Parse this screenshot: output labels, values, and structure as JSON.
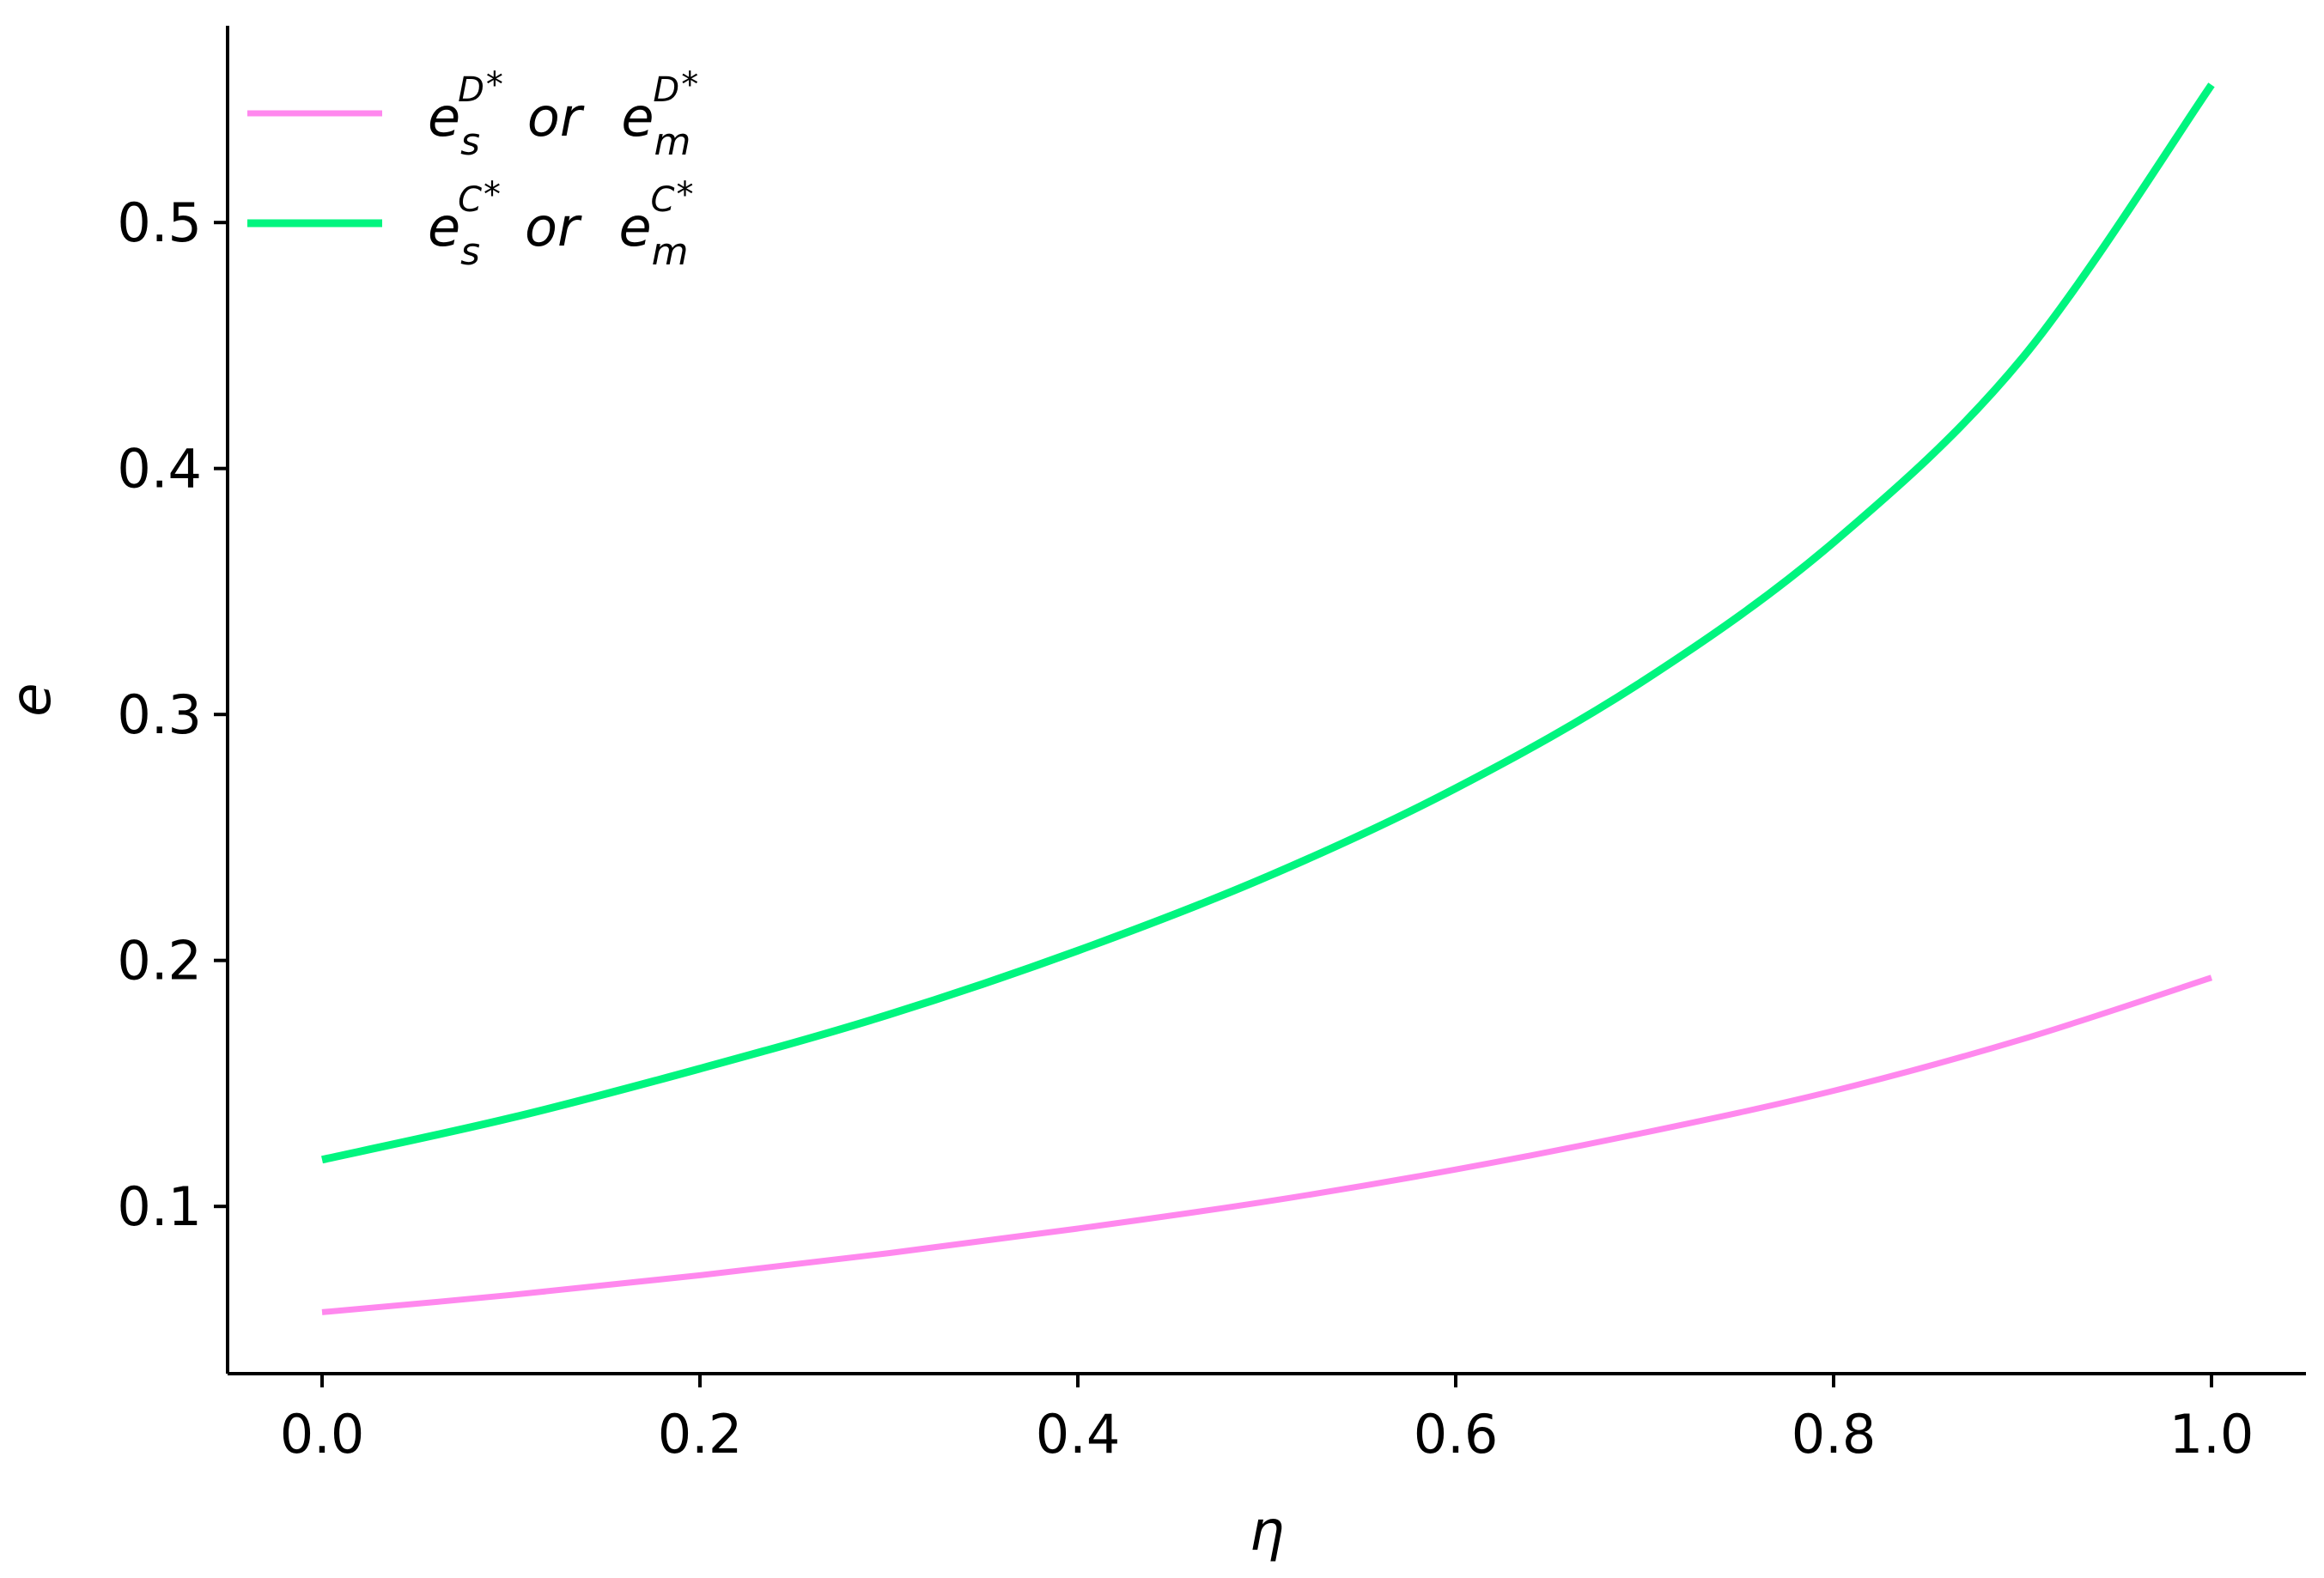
{
  "chart_data": {
    "type": "line",
    "xlabel": "η",
    "ylabel": "e",
    "xlim": [
      -0.05,
      1.05
    ],
    "ylim": [
      0.032,
      0.58
    ],
    "xticks": [
      0.0,
      0.2,
      0.4,
      0.6,
      0.8,
      1.0
    ],
    "xtick_labels": [
      "0.0",
      "0.2",
      "0.4",
      "0.6",
      "0.8",
      "1.0"
    ],
    "yticks": [
      0.1,
      0.2,
      0.3,
      0.4,
      0.5
    ],
    "ytick_labels": [
      "0.1",
      "0.2",
      "0.3",
      "0.4",
      "0.5"
    ],
    "grid": false,
    "legend_position": "top-left",
    "spines": "left-bottom",
    "x": [
      0.0,
      0.1,
      0.2,
      0.3,
      0.4,
      0.5,
      0.6,
      0.7,
      0.8,
      0.9,
      1.0
    ],
    "series": [
      {
        "id": "D",
        "legend": {
          "base": "e",
          "sub": "s",
          "sup": "D",
          "sep": "or",
          "base2": "e",
          "sub2": "m",
          "sup2": "D"
        },
        "color": "#ff88ee",
        "values": [
          0.057,
          0.064,
          0.072,
          0.081,
          0.091,
          0.102,
          0.115,
          0.13,
          0.147,
          0.168,
          0.193
        ]
      },
      {
        "id": "C",
        "legend": {
          "base": "e",
          "sub": "s",
          "sup": "C",
          "sep": "or",
          "base2": "e",
          "sub2": "m",
          "sup2": "C"
        },
        "color": "#00f57f",
        "values": [
          0.119,
          0.136,
          0.156,
          0.178,
          0.204,
          0.234,
          0.27,
          0.314,
          0.37,
          0.445,
          0.556
        ]
      }
    ]
  }
}
